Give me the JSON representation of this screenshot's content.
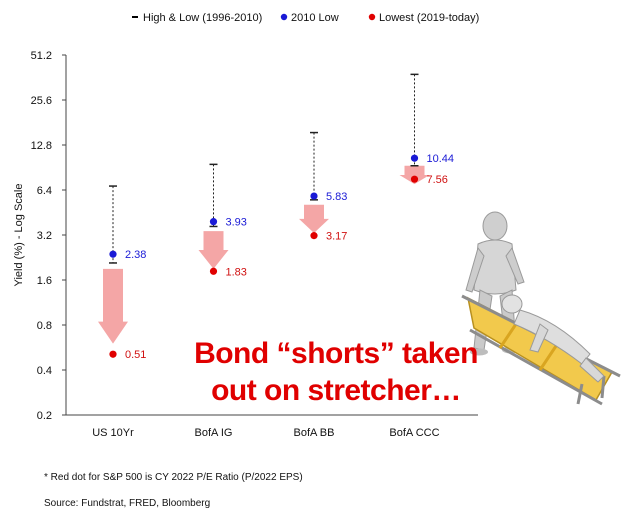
{
  "chart_data": {
    "type": "scatter",
    "ylabel": "Yield (%) - Log Scale",
    "yscale": "log",
    "ylim": [
      0.2,
      51.2
    ],
    "yticks": [
      "51.2",
      "25.6",
      "12.8",
      "6.4",
      "3.2",
      "1.6",
      "0.8",
      "0.4",
      "0.2"
    ],
    "ytick_values": [
      51.2,
      25.6,
      12.8,
      6.4,
      3.2,
      1.6,
      0.8,
      0.4,
      0.2
    ],
    "categories": [
      "US 10Yr",
      "BofA IG",
      "BofA BB",
      "BofA CCC"
    ],
    "legend": {
      "placement": "top",
      "entries": [
        {
          "key": "range",
          "label": "High & Low (1996-2010)",
          "color": "#000000"
        },
        {
          "key": "low2010",
          "label": "2010 Low",
          "color": "#1a1ad6"
        },
        {
          "key": "lowest",
          "label": "Lowest (2019-today)",
          "color": "#e00000"
        }
      ]
    },
    "range_high": [
      6.8,
      9.5,
      15.5,
      38.0
    ],
    "range_low": [
      2.08,
      3.65,
      5.5,
      9.3
    ],
    "low2010": {
      "values": [
        2.38,
        3.93,
        5.83,
        10.44
      ],
      "labels": [
        "2.38",
        "3.93",
        "5.83",
        "10.44"
      ]
    },
    "lowest": {
      "values": [
        0.51,
        1.83,
        3.17,
        7.56
      ],
      "labels": [
        "0.51",
        "1.83",
        "3.17",
        "7.56"
      ]
    },
    "arrows": [
      {
        "from": 1.9,
        "to": 0.6
      },
      {
        "from": 3.4,
        "to": 1.9
      },
      {
        "from": 5.1,
        "to": 3.3
      },
      {
        "from": 9.3,
        "to": 7.0
      }
    ],
    "callout": [
      "Bond “shorts” taken",
      "out on stretcher…"
    ],
    "colors": {
      "blue": "#1a1ad6",
      "red": "#e00000",
      "arrow": "#f4a6a6",
      "axis": "#444444"
    }
  },
  "footnote": "* Red dot for S&P 500 is CY 2022 P/E Ratio (P/2022 EPS)",
  "source": "Source: Fundstrat, FRED, Bloomberg",
  "illustration": {
    "icon": "robot-stretcher-icon"
  }
}
